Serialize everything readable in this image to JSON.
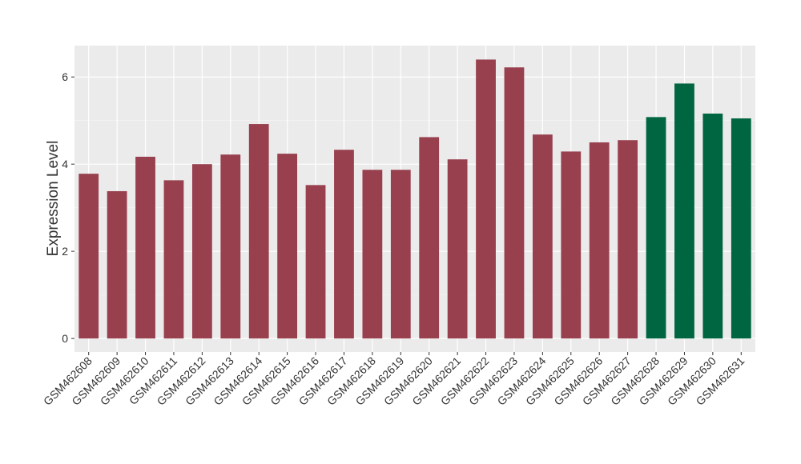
{
  "chart_data": {
    "type": "bar",
    "y_label": "Expression Level",
    "categories": [
      "GSM462608",
      "GSM462609",
      "GSM462610",
      "GSM462611",
      "GSM462612",
      "GSM462613",
      "GSM462614",
      "GSM462615",
      "GSM462616",
      "GSM462617",
      "GSM462618",
      "GSM462619",
      "GSM462620",
      "GSM462621",
      "GSM462622",
      "GSM462623",
      "GSM462624",
      "GSM462625",
      "GSM462626",
      "GSM462627",
      "GSM462628",
      "GSM462629",
      "GSM462630",
      "GSM462631"
    ],
    "values": [
      3.78,
      3.38,
      4.17,
      3.63,
      4.0,
      4.22,
      4.92,
      4.24,
      3.52,
      4.33,
      3.87,
      3.87,
      4.62,
      4.11,
      6.4,
      6.22,
      4.68,
      4.29,
      4.5,
      4.55,
      5.08,
      5.85,
      5.16,
      5.05
    ],
    "colors": [
      "#99404f",
      "#99404f",
      "#99404f",
      "#99404f",
      "#99404f",
      "#99404f",
      "#99404f",
      "#99404f",
      "#99404f",
      "#99404f",
      "#99404f",
      "#99404f",
      "#99404f",
      "#99404f",
      "#99404f",
      "#99404f",
      "#99404f",
      "#99404f",
      "#99404f",
      "#99404f",
      "#006641",
      "#006641",
      "#006641",
      "#006641"
    ],
    "ylim": [
      -0.31,
      6.72
    ],
    "yticks": [
      0,
      2,
      4,
      6
    ],
    "grid": true
  }
}
